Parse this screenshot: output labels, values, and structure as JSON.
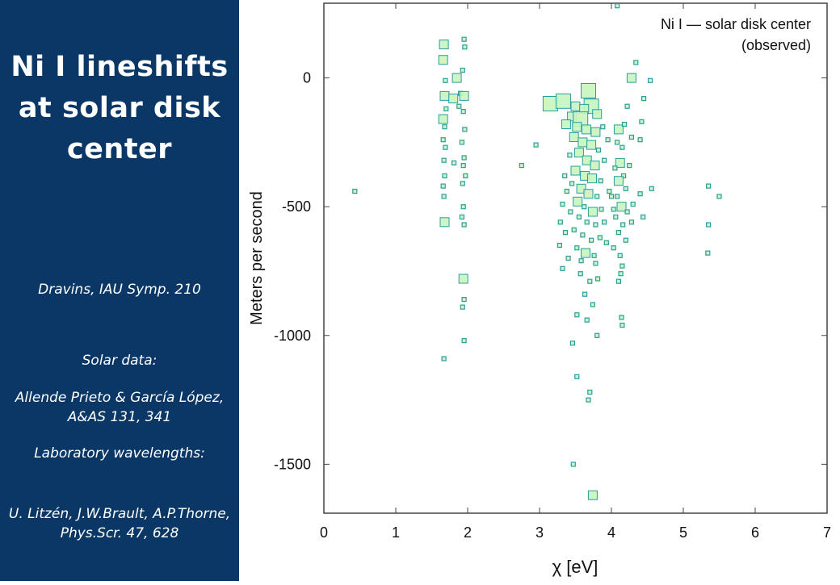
{
  "sidebar": {
    "title": "Ni I lineshifts at solar disk center",
    "citation": "Dravins, IAU Symp. 210",
    "solar_data_label": "Solar data:",
    "solar_data_ref": "Allende Prieto & García López, A&AS 131, 341",
    "lab_label": "Laboratory wavelengths:",
    "lab_ref": "U. Litzén, J.W.Brault, A.P.Thorne, Phys.Scr. 47, 628",
    "background_color": "#0b3767"
  },
  "chart_data": {
    "type": "scatter",
    "title": "Ni I — solar disk center",
    "subtitle": "(observed)",
    "xlabel": "χ [eV]",
    "ylabel": "Meters per second",
    "xlim": [
      0,
      7
    ],
    "ylim": [
      -1690,
      290
    ],
    "xticks": [
      0,
      1,
      2,
      3,
      4,
      5,
      6,
      7
    ],
    "yticks": [
      0,
      -500,
      -1000,
      -1500
    ],
    "grid": false,
    "marker_fill": "#c6f6bf",
    "marker_stroke": "#2a9d9f",
    "points": [
      {
        "x": 0.43,
        "y": -440,
        "s": 1
      },
      {
        "x": 1.67,
        "y": 130,
        "s": 2
      },
      {
        "x": 1.66,
        "y": 70,
        "s": 2
      },
      {
        "x": 1.69,
        "y": -10,
        "s": 1
      },
      {
        "x": 1.68,
        "y": -70,
        "s": 2
      },
      {
        "x": 1.7,
        "y": -120,
        "s": 1
      },
      {
        "x": 1.66,
        "y": -160,
        "s": 2
      },
      {
        "x": 1.68,
        "y": -190,
        "s": 1
      },
      {
        "x": 1.66,
        "y": -240,
        "s": 1
      },
      {
        "x": 1.69,
        "y": -270,
        "s": 1
      },
      {
        "x": 1.67,
        "y": -320,
        "s": 1
      },
      {
        "x": 1.68,
        "y": -380,
        "s": 1
      },
      {
        "x": 1.66,
        "y": -420,
        "s": 1
      },
      {
        "x": 1.67,
        "y": -460,
        "s": 1
      },
      {
        "x": 1.68,
        "y": -560,
        "s": 2
      },
      {
        "x": 1.67,
        "y": -1090,
        "s": 1
      },
      {
        "x": 1.85,
        "y": 0,
        "s": 2
      },
      {
        "x": 1.8,
        "y": -80,
        "s": 2
      },
      {
        "x": 1.9,
        "y": -60,
        "s": 1
      },
      {
        "x": 1.88,
        "y": -110,
        "s": 1
      },
      {
        "x": 1.81,
        "y": -330,
        "s": 1
      },
      {
        "x": 1.95,
        "y": 150,
        "s": 1
      },
      {
        "x": 1.96,
        "y": 120,
        "s": 1
      },
      {
        "x": 1.93,
        "y": 30,
        "s": 1
      },
      {
        "x": 1.95,
        "y": -70,
        "s": 2
      },
      {
        "x": 1.94,
        "y": -130,
        "s": 1
      },
      {
        "x": 1.96,
        "y": -200,
        "s": 1
      },
      {
        "x": 1.92,
        "y": -250,
        "s": 1
      },
      {
        "x": 1.95,
        "y": -310,
        "s": 1
      },
      {
        "x": 1.94,
        "y": -340,
        "s": 1
      },
      {
        "x": 1.97,
        "y": -380,
        "s": 1
      },
      {
        "x": 1.93,
        "y": -410,
        "s": 1
      },
      {
        "x": 1.94,
        "y": -500,
        "s": 1
      },
      {
        "x": 1.92,
        "y": -540,
        "s": 1
      },
      {
        "x": 1.95,
        "y": -570,
        "s": 1
      },
      {
        "x": 1.94,
        "y": -780,
        "s": 2
      },
      {
        "x": 1.95,
        "y": -860,
        "s": 1
      },
      {
        "x": 1.93,
        "y": -890,
        "s": 1
      },
      {
        "x": 1.95,
        "y": -1020,
        "s": 1
      },
      {
        "x": 2.75,
        "y": -340,
        "s": 1
      },
      {
        "x": 2.95,
        "y": -260,
        "s": 1
      },
      {
        "x": 3.15,
        "y": -100,
        "s": 3
      },
      {
        "x": 3.33,
        "y": -90,
        "s": 3
      },
      {
        "x": 3.5,
        "y": -110,
        "s": 2
      },
      {
        "x": 3.68,
        "y": -50,
        "s": 3
      },
      {
        "x": 3.72,
        "y": -110,
        "s": 3
      },
      {
        "x": 3.62,
        "y": -120,
        "s": 2
      },
      {
        "x": 3.8,
        "y": -140,
        "s": 2
      },
      {
        "x": 3.45,
        "y": -150,
        "s": 2
      },
      {
        "x": 3.57,
        "y": -160,
        "s": 3
      },
      {
        "x": 3.37,
        "y": -180,
        "s": 2
      },
      {
        "x": 3.52,
        "y": -190,
        "s": 2
      },
      {
        "x": 3.65,
        "y": -200,
        "s": 2
      },
      {
        "x": 3.78,
        "y": -210,
        "s": 2
      },
      {
        "x": 3.88,
        "y": -190,
        "s": 1
      },
      {
        "x": 3.95,
        "y": -240,
        "s": 1
      },
      {
        "x": 3.48,
        "y": -230,
        "s": 2
      },
      {
        "x": 3.6,
        "y": -250,
        "s": 2
      },
      {
        "x": 3.72,
        "y": -260,
        "s": 2
      },
      {
        "x": 3.82,
        "y": -280,
        "s": 1
      },
      {
        "x": 3.55,
        "y": -290,
        "s": 2
      },
      {
        "x": 3.42,
        "y": -300,
        "s": 1
      },
      {
        "x": 3.66,
        "y": -320,
        "s": 2
      },
      {
        "x": 3.77,
        "y": -340,
        "s": 2
      },
      {
        "x": 3.9,
        "y": -320,
        "s": 1
      },
      {
        "x": 3.5,
        "y": -360,
        "s": 2
      },
      {
        "x": 3.63,
        "y": -380,
        "s": 2
      },
      {
        "x": 3.73,
        "y": -390,
        "s": 2
      },
      {
        "x": 3.85,
        "y": -400,
        "s": 1
      },
      {
        "x": 3.35,
        "y": -380,
        "s": 1
      },
      {
        "x": 3.45,
        "y": -410,
        "s": 1
      },
      {
        "x": 3.58,
        "y": -430,
        "s": 2
      },
      {
        "x": 3.68,
        "y": -450,
        "s": 2
      },
      {
        "x": 3.8,
        "y": -460,
        "s": 1
      },
      {
        "x": 3.53,
        "y": -480,
        "s": 2
      },
      {
        "x": 3.62,
        "y": -500,
        "s": 1
      },
      {
        "x": 3.74,
        "y": -520,
        "s": 2
      },
      {
        "x": 3.86,
        "y": -510,
        "s": 1
      },
      {
        "x": 3.43,
        "y": -520,
        "s": 1
      },
      {
        "x": 3.55,
        "y": -540,
        "s": 1
      },
      {
        "x": 3.66,
        "y": -560,
        "s": 1
      },
      {
        "x": 3.78,
        "y": -570,
        "s": 1
      },
      {
        "x": 3.9,
        "y": -560,
        "s": 1
      },
      {
        "x": 3.48,
        "y": -590,
        "s": 1
      },
      {
        "x": 3.6,
        "y": -610,
        "s": 1
      },
      {
        "x": 3.72,
        "y": -630,
        "s": 1
      },
      {
        "x": 3.84,
        "y": -620,
        "s": 1
      },
      {
        "x": 3.52,
        "y": -660,
        "s": 1
      },
      {
        "x": 3.64,
        "y": -680,
        "s": 2
      },
      {
        "x": 3.76,
        "y": -690,
        "s": 1
      },
      {
        "x": 3.4,
        "y": -700,
        "s": 1
      },
      {
        "x": 3.28,
        "y": -650,
        "s": 1
      },
      {
        "x": 3.32,
        "y": -740,
        "s": 1
      },
      {
        "x": 3.57,
        "y": -760,
        "s": 1
      },
      {
        "x": 3.7,
        "y": -790,
        "s": 1
      },
      {
        "x": 3.81,
        "y": -780,
        "s": 1
      },
      {
        "x": 3.63,
        "y": -840,
        "s": 1
      },
      {
        "x": 3.74,
        "y": -880,
        "s": 1
      },
      {
        "x": 3.52,
        "y": -920,
        "s": 1
      },
      {
        "x": 3.66,
        "y": -940,
        "s": 1
      },
      {
        "x": 3.8,
        "y": -1000,
        "s": 1
      },
      {
        "x": 3.46,
        "y": -1030,
        "s": 1
      },
      {
        "x": 3.52,
        "y": -1160,
        "s": 1
      },
      {
        "x": 3.7,
        "y": -1220,
        "s": 1
      },
      {
        "x": 3.68,
        "y": -1250,
        "s": 1
      },
      {
        "x": 3.47,
        "y": -1500,
        "s": 1
      },
      {
        "x": 3.74,
        "y": -1620,
        "s": 2
      },
      {
        "x": 3.38,
        "y": -440,
        "s": 1
      },
      {
        "x": 3.32,
        "y": -490,
        "s": 1
      },
      {
        "x": 3.29,
        "y": -560,
        "s": 1
      },
      {
        "x": 3.36,
        "y": -600,
        "s": 1
      },
      {
        "x": 3.97,
        "y": -440,
        "s": 1
      },
      {
        "x": 3.93,
        "y": -640,
        "s": 1
      },
      {
        "x": 3.58,
        "y": -710,
        "s": 1
      },
      {
        "x": 3.78,
        "y": -720,
        "s": 1
      },
      {
        "x": 4.1,
        "y": -200,
        "s": 2
      },
      {
        "x": 4.18,
        "y": -180,
        "s": 1
      },
      {
        "x": 4.08,
        "y": -250,
        "s": 1
      },
      {
        "x": 4.15,
        "y": -270,
        "s": 1
      },
      {
        "x": 4.12,
        "y": -330,
        "s": 2
      },
      {
        "x": 4.05,
        "y": -350,
        "s": 1
      },
      {
        "x": 4.17,
        "y": -380,
        "s": 1
      },
      {
        "x": 4.1,
        "y": -400,
        "s": 2
      },
      {
        "x": 4.2,
        "y": -430,
        "s": 1
      },
      {
        "x": 4.08,
        "y": -460,
        "s": 1
      },
      {
        "x": 4.14,
        "y": -500,
        "s": 2
      },
      {
        "x": 4.22,
        "y": -520,
        "s": 1
      },
      {
        "x": 4.06,
        "y": -540,
        "s": 1
      },
      {
        "x": 4.16,
        "y": -570,
        "s": 1
      },
      {
        "x": 4.1,
        "y": -600,
        "s": 1
      },
      {
        "x": 4.2,
        "y": -630,
        "s": 1
      },
      {
        "x": 4.03,
        "y": -660,
        "s": 1
      },
      {
        "x": 4.12,
        "y": -690,
        "s": 1
      },
      {
        "x": 4.15,
        "y": -730,
        "s": 1
      },
      {
        "x": 4.13,
        "y": -760,
        "s": 1
      },
      {
        "x": 4.1,
        "y": -790,
        "s": 1
      },
      {
        "x": 4.14,
        "y": -930,
        "s": 1
      },
      {
        "x": 4.15,
        "y": -960,
        "s": 1
      },
      {
        "x": 4.22,
        "y": -110,
        "s": 1
      },
      {
        "x": 4.28,
        "y": -230,
        "s": 1
      },
      {
        "x": 4.25,
        "y": -340,
        "s": 1
      },
      {
        "x": 4.3,
        "y": -490,
        "s": 1
      },
      {
        "x": 4.28,
        "y": -560,
        "s": 1
      },
      {
        "x": 4.0,
        "y": -460,
        "s": 1
      },
      {
        "x": 4.03,
        "y": -510,
        "s": 1
      },
      {
        "x": 4.28,
        "y": 0,
        "s": 2
      },
      {
        "x": 4.34,
        "y": 60,
        "s": 1
      },
      {
        "x": 4.45,
        "y": -80,
        "s": 1
      },
      {
        "x": 4.42,
        "y": -170,
        "s": 1
      },
      {
        "x": 4.4,
        "y": -240,
        "s": 1
      },
      {
        "x": 4.54,
        "y": -10,
        "s": 1
      },
      {
        "x": 4.56,
        "y": -430,
        "s": 1
      },
      {
        "x": 4.4,
        "y": -450,
        "s": 1
      },
      {
        "x": 4.44,
        "y": -540,
        "s": 1
      },
      {
        "x": 4.08,
        "y": 280,
        "s": 1
      },
      {
        "x": 5.35,
        "y": -420,
        "s": 1
      },
      {
        "x": 5.5,
        "y": -460,
        "s": 1
      },
      {
        "x": 5.35,
        "y": -570,
        "s": 1
      },
      {
        "x": 5.34,
        "y": -680,
        "s": 1
      }
    ]
  }
}
